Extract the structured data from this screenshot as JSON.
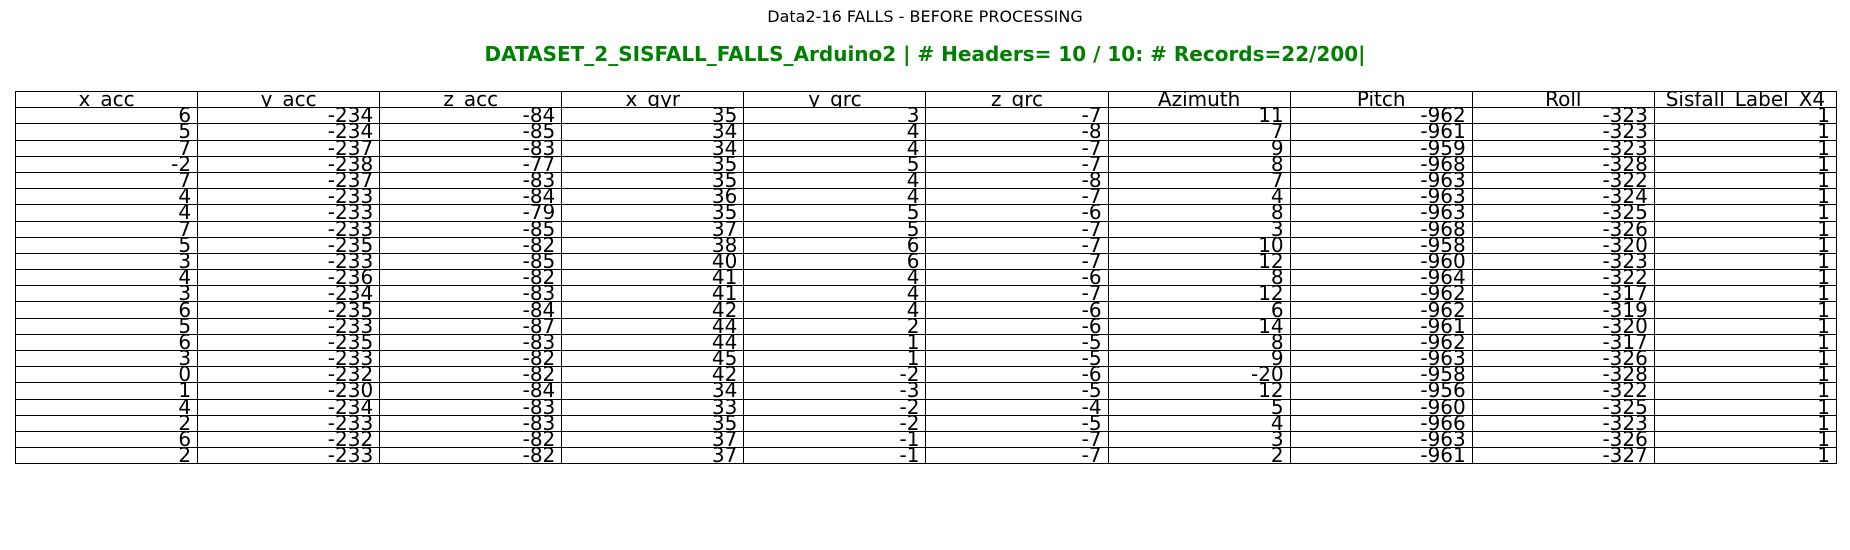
{
  "figure_title": "Data2-16 FALLS - BEFORE PROCESSING",
  "colors": {
    "table_title": "#008000",
    "cell_border": "#000000",
    "background": "#ffffff"
  },
  "chart_data": {
    "type": "table",
    "title": "DATASET_2_SISFALL_FALLS_Arduino2 | # Headers= 10 / 10: # Records=22/200|",
    "columns": [
      "x_acc",
      "y_acc",
      "z_acc",
      "x_gyr",
      "y_grc",
      "z_grc",
      "Azimuth",
      "Pitch",
      "Roll",
      "Sisfall_Label_X4"
    ],
    "rows": [
      [
        6,
        -234,
        -84,
        35,
        3,
        -7,
        11,
        -962,
        -323,
        1
      ],
      [
        5,
        -234,
        -85,
        34,
        4,
        -8,
        7,
        -961,
        -323,
        1
      ],
      [
        7,
        -237,
        -83,
        34,
        4,
        -7,
        9,
        -959,
        -323,
        1
      ],
      [
        -2,
        -238,
        -77,
        35,
        5,
        -7,
        8,
        -968,
        -328,
        1
      ],
      [
        7,
        -237,
        -83,
        35,
        4,
        -8,
        7,
        -963,
        -322,
        1
      ],
      [
        4,
        -233,
        -84,
        36,
        4,
        -7,
        4,
        -963,
        -324,
        1
      ],
      [
        4,
        -233,
        -79,
        35,
        5,
        -6,
        8,
        -963,
        -325,
        1
      ],
      [
        7,
        -233,
        -85,
        37,
        5,
        -7,
        3,
        -968,
        -326,
        1
      ],
      [
        5,
        -235,
        -82,
        38,
        6,
        -7,
        10,
        -958,
        -320,
        1
      ],
      [
        3,
        -233,
        -85,
        40,
        6,
        -7,
        12,
        -960,
        -323,
        1
      ],
      [
        4,
        -236,
        -82,
        41,
        4,
        -6,
        8,
        -964,
        -322,
        1
      ],
      [
        3,
        -234,
        -83,
        41,
        4,
        -7,
        12,
        -962,
        -317,
        1
      ],
      [
        6,
        -235,
        -84,
        42,
        4,
        -6,
        6,
        -962,
        -319,
        1
      ],
      [
        5,
        -233,
        -87,
        44,
        2,
        -6,
        14,
        -961,
        -320,
        1
      ],
      [
        6,
        -235,
        -83,
        44,
        1,
        -5,
        8,
        -962,
        -317,
        1
      ],
      [
        3,
        -233,
        -82,
        45,
        1,
        -5,
        9,
        -963,
        -326,
        1
      ],
      [
        0,
        -232,
        -82,
        42,
        -2,
        -6,
        -20,
        -958,
        -328,
        1
      ],
      [
        1,
        -230,
        -84,
        34,
        -3,
        -5,
        12,
        -956,
        -322,
        1
      ],
      [
        4,
        -234,
        -83,
        33,
        -2,
        -4,
        5,
        -960,
        -325,
        1
      ],
      [
        2,
        -233,
        -83,
        35,
        -2,
        -5,
        4,
        -966,
        -323,
        1
      ],
      [
        6,
        -232,
        -82,
        37,
        -1,
        -7,
        3,
        -963,
        -326,
        1
      ],
      [
        2,
        -233,
        -82,
        37,
        -1,
        -7,
        2,
        -961,
        -327,
        1
      ]
    ]
  }
}
